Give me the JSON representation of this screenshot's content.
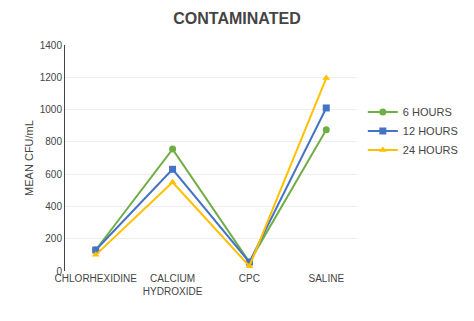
{
  "chart_data": {
    "type": "line",
    "title": "CONTAMINATED",
    "ylabel": "MEAN CFU/mL",
    "categories": [
      "CHLORHEXIDINE",
      "CALCIUM\nHYDROXIDE",
      "CPC",
      "SALINE"
    ],
    "series": [
      {
        "name": "6 HOURS",
        "color": "#70AD47",
        "marker": "circle",
        "values": [
          130,
          755,
          55,
          875
        ]
      },
      {
        "name": "12 HOURS",
        "color": "#4472C4",
        "marker": "square",
        "values": [
          130,
          630,
          55,
          1010
        ]
      },
      {
        "name": "24 HOURS",
        "color": "#FFC000",
        "marker": "triangle-up",
        "values": [
          100,
          550,
          30,
          1195
        ]
      }
    ],
    "ylim": [
      0,
      1400
    ],
    "yticks": [
      0,
      200,
      400,
      600,
      800,
      1000,
      1200,
      1400
    ],
    "grid": true,
    "legend": "right"
  }
}
